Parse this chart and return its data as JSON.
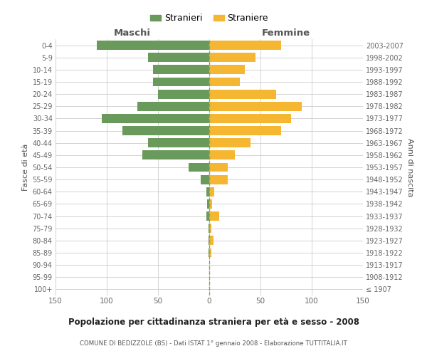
{
  "age_groups": [
    "100+",
    "95-99",
    "90-94",
    "85-89",
    "80-84",
    "75-79",
    "70-74",
    "65-69",
    "60-64",
    "55-59",
    "50-54",
    "45-49",
    "40-44",
    "35-39",
    "30-34",
    "25-29",
    "20-24",
    "15-19",
    "10-14",
    "5-9",
    "0-4"
  ],
  "birth_years": [
    "≤ 1907",
    "1908-1912",
    "1913-1917",
    "1918-1922",
    "1923-1927",
    "1928-1932",
    "1933-1937",
    "1938-1942",
    "1943-1947",
    "1948-1952",
    "1953-1957",
    "1958-1962",
    "1963-1967",
    "1968-1972",
    "1973-1977",
    "1978-1982",
    "1983-1987",
    "1988-1992",
    "1993-1997",
    "1998-2002",
    "2003-2007"
  ],
  "maschi": [
    0,
    0,
    0,
    1,
    1,
    1,
    3,
    2,
    3,
    8,
    20,
    65,
    60,
    85,
    105,
    70,
    50,
    55,
    55,
    60,
    110
  ],
  "femmine": [
    0,
    0,
    0,
    2,
    4,
    2,
    10,
    3,
    5,
    18,
    18,
    25,
    40,
    70,
    80,
    90,
    65,
    30,
    35,
    45,
    70
  ],
  "color_maschi": "#6a9a5b",
  "color_femmine": "#f5b731",
  "title": "Popolazione per cittadinanza straniera per età e sesso - 2008",
  "subtitle": "COMUNE DI BEDIZZOLE (BS) - Dati ISTAT 1° gennaio 2008 - Elaborazione TUTTITALIA.IT",
  "ylabel_left": "Fasce di età",
  "ylabel_right": "Anni di nascita",
  "xlabel_maschi": "Maschi",
  "xlabel_femmine": "Femmine",
  "legend_maschi": "Stranieri",
  "legend_femmine": "Straniere",
  "xlim": 150,
  "background_color": "#ffffff",
  "grid_color": "#cccccc"
}
